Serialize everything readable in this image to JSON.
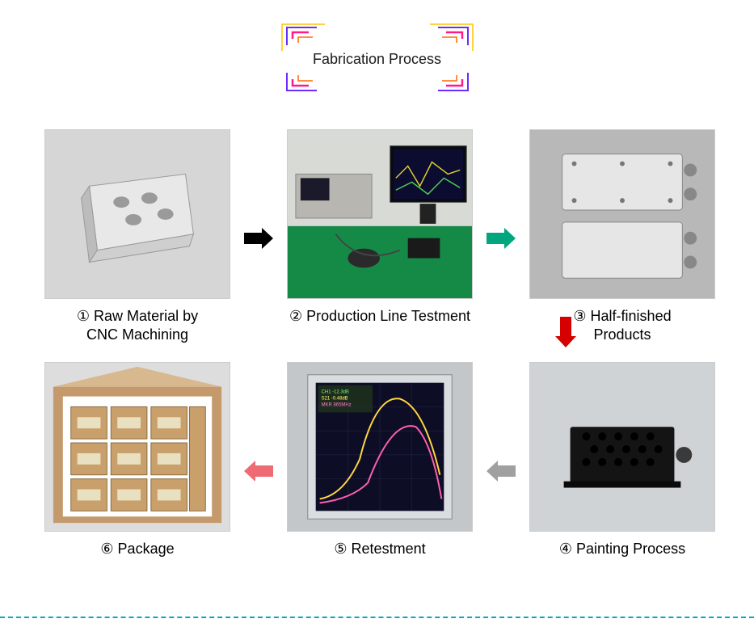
{
  "title": "Fabrication Process",
  "title_frame": {
    "colors": [
      "#ff1a8c",
      "#6b2cff",
      "#ff6a00",
      "#ffc400"
    ],
    "stroke_width": 2
  },
  "steps": {
    "s1": {
      "num": "①",
      "label": "Raw Material by\nCNC Machining"
    },
    "s2": {
      "num": "②",
      "label": "Production Line Testment"
    },
    "s3": {
      "num": "③",
      "label": "Half-finished\nProducts"
    },
    "s4": {
      "num": "④",
      "label": "Painting Process"
    },
    "s5": {
      "num": "⑤",
      "label": "Retestment"
    },
    "s6": {
      "num": "⑥",
      "label": "Package"
    }
  },
  "arrows": {
    "a12": {
      "color": "#000000",
      "dir": "right"
    },
    "a23": {
      "color": "#00a67d",
      "dir": "right"
    },
    "a34": {
      "color": "#d60000",
      "dir": "down"
    },
    "a45": {
      "color": "#a0a0a0",
      "dir": "left"
    },
    "a56": {
      "color": "#ef6b74",
      "dir": "left"
    }
  },
  "photos": {
    "s1": {
      "bg": "#d4d4d4",
      "desc": "machined aluminum block"
    },
    "s2": {
      "bg": "#0f8a3f",
      "desc": "test bench with monitor"
    },
    "s3": {
      "bg": "#bdbdbd",
      "desc": "two metal RF filter boxes"
    },
    "s4": {
      "bg": "#cfd2d5",
      "desc": "black painted filter"
    },
    "s5": {
      "bg": "#c8ccce",
      "desc": "network analyzer screen"
    },
    "s6": {
      "bg": "#e0ceb3",
      "desc": "boxes in carton"
    }
  },
  "caption_fontsize": 18,
  "caption_color": "#1a1a1a",
  "dashed_color": "#0aa6c4"
}
